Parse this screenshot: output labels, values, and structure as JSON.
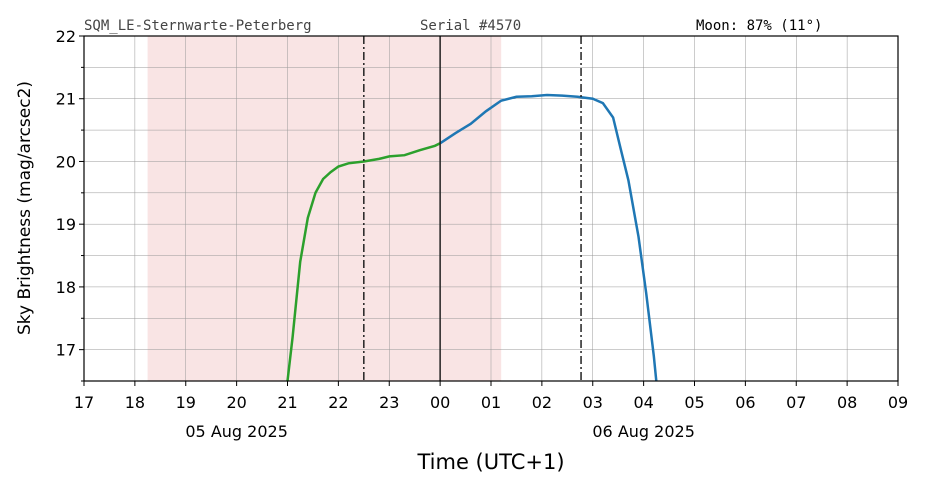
{
  "chart_data": {
    "type": "line",
    "station": "SQM_LE-Sternwarte-Peterberg",
    "serial": "Serial #4570",
    "moon": "Moon: 87% (11°)",
    "xlabel": "Time (UTC+1)",
    "ylabel": "Sky Brightness (mag/arcsec2)",
    "xlim": [
      17,
      33
    ],
    "ylim": [
      16.5,
      22
    ],
    "xticks": [
      17,
      18,
      19,
      20,
      21,
      22,
      23,
      {
        "value": 24,
        "label": "00"
      },
      {
        "value": 25,
        "label": "01"
      },
      {
        "value": 26,
        "label": "02"
      },
      {
        "value": 27,
        "label": "03"
      },
      {
        "value": 28,
        "label": "04"
      },
      {
        "value": 29,
        "label": "05"
      },
      {
        "value": 30,
        "label": "06"
      },
      {
        "value": 31,
        "label": "07"
      },
      {
        "value": 32,
        "label": "08"
      },
      {
        "value": 33,
        "label": "09"
      }
    ],
    "yticks": [
      17,
      18,
      19,
      20,
      21,
      22
    ],
    "yminorticks": [
      16.5,
      17.5,
      18.5,
      19.5,
      20.5,
      21.5
    ],
    "date_labels": [
      {
        "value": 20,
        "label": "05 Aug 2025"
      },
      {
        "value": 28,
        "label": "06 Aug 2025"
      }
    ],
    "grid": true,
    "shaded_region": [
      18.25,
      25.2
    ],
    "shade_color": "#f9e4e4",
    "vlines": [
      {
        "x": 22.5,
        "style": "dashdot"
      },
      {
        "x": 24,
        "style": "solid"
      },
      {
        "x": 26.77,
        "style": "dashdot"
      }
    ],
    "series": [
      {
        "color": "#2ca02c",
        "x": [
          21.0,
          21.1,
          21.25,
          21.4,
          21.55,
          21.7,
          21.85,
          22.0,
          22.2,
          22.5,
          22.8,
          23.0,
          23.3,
          23.6,
          23.9,
          24.0
        ],
        "values": [
          16.5,
          17.2,
          18.4,
          19.1,
          19.5,
          19.72,
          19.83,
          19.92,
          19.97,
          20.0,
          20.04,
          20.08,
          20.1,
          20.18,
          20.25,
          20.29
        ]
      },
      {
        "color": "#1f77b4",
        "x": [
          24.0,
          24.3,
          24.6,
          24.9,
          25.2,
          25.5,
          25.8,
          26.1,
          26.4,
          26.7,
          27.0,
          27.2,
          27.4,
          27.55,
          27.7,
          27.9,
          28.05,
          28.2,
          28.25
        ],
        "values": [
          20.29,
          20.45,
          20.6,
          20.8,
          20.97,
          21.03,
          21.04,
          21.06,
          21.05,
          21.03,
          21.0,
          20.93,
          20.7,
          20.2,
          19.7,
          18.8,
          17.9,
          16.9,
          16.5
        ]
      }
    ]
  }
}
